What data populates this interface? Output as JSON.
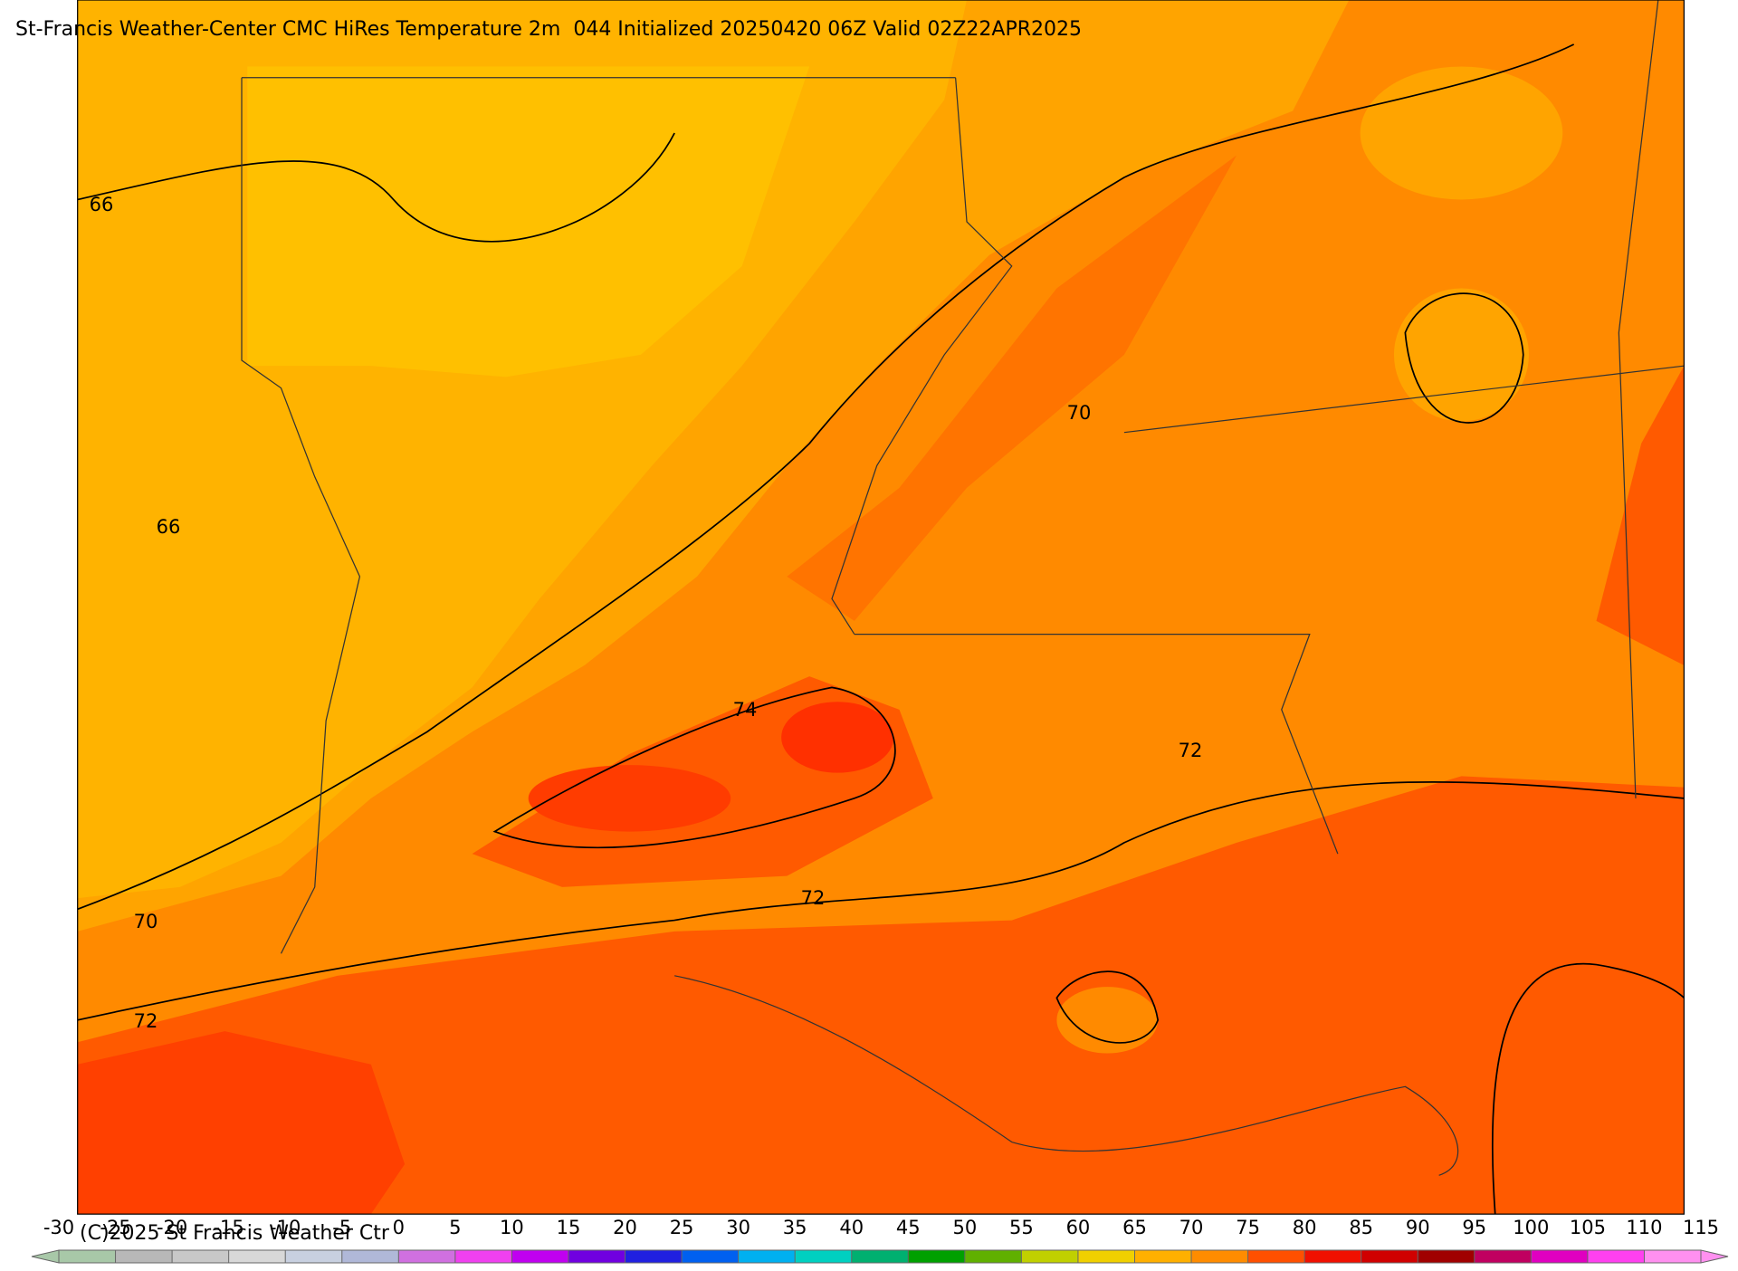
{
  "header": {
    "title": "St-Francis Weather-Center CMC HiRes Temperature 2m  044 Initialized 20250420 06Z Valid 02Z22APR2025"
  },
  "map": {
    "contour_labels": [
      66,
      66,
      70,
      74,
      72,
      72,
      70,
      72
    ]
  },
  "colorbar": {
    "ticks": [
      -30,
      -25,
      -20,
      -15,
      -10,
      -5,
      0,
      5,
      10,
      15,
      20,
      25,
      30,
      35,
      40,
      45,
      50,
      55,
      60,
      65,
      70,
      75,
      80,
      85,
      90,
      95,
      100,
      105,
      110,
      115
    ],
    "colors": [
      "#a8c8a8",
      "#b8b8b8",
      "#c8c8c8",
      "#d8d8d8",
      "#c8d0e0",
      "#b0b8d8",
      "#d070e0",
      "#f040f0",
      "#c000f0",
      "#7000e0",
      "#2020e0",
      "#0060f0",
      "#00b0f0",
      "#00d0c0",
      "#00b070",
      "#00a000",
      "#60b000",
      "#c0d000",
      "#f0d000",
      "#ffb000",
      "#ff8c00",
      "#ff5000",
      "#f01000",
      "#d00000",
      "#a00000",
      "#c00060",
      "#e000c0",
      "#ff40f0",
      "#ff90f0"
    ]
  },
  "footer": {
    "copyright": "(C)2025 St Francis Weather Ctr"
  }
}
